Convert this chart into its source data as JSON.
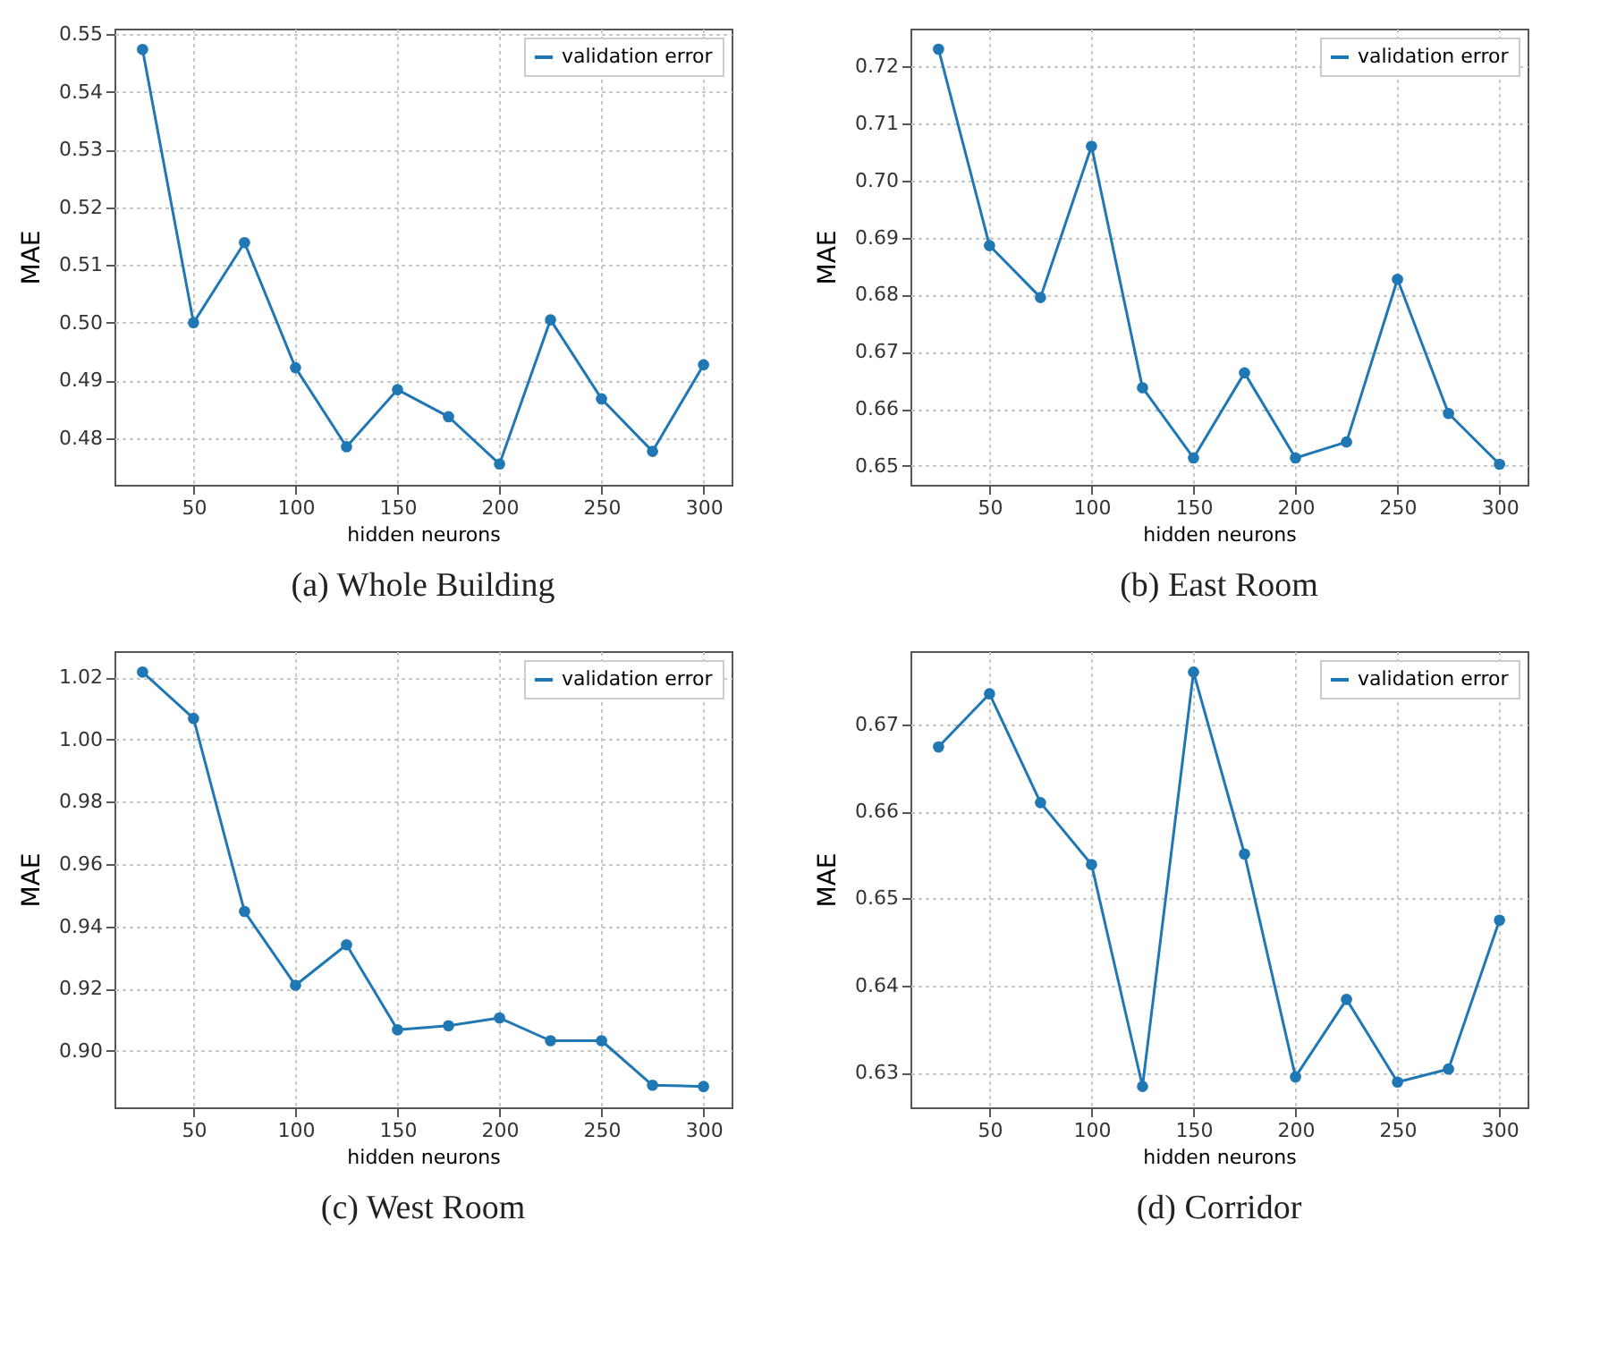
{
  "chart_data": [
    {
      "type": "line",
      "title": "(a) Whole Building",
      "xlabel": "hidden neurons",
      "ylabel": "MAE",
      "x": [
        25,
        50,
        75,
        100,
        125,
        150,
        175,
        200,
        225,
        250,
        275,
        300
      ],
      "series": [
        {
          "name": "validation error",
          "color": "#1f77b4",
          "values": [
            0.5474,
            0.5,
            0.5139,
            0.4922,
            0.4785,
            0.4884,
            0.4837,
            0.4755,
            0.5005,
            0.4868,
            0.4777,
            0.4927
          ]
        }
      ],
      "xlim": [
        11.25,
        313.75
      ],
      "ylim": [
        0.4719,
        0.551
      ],
      "xticks": [
        50,
        100,
        150,
        200,
        250,
        300
      ],
      "yticks": [
        0.48,
        0.49,
        {
          "value": 0.5,
          "label": "0.50"
        },
        0.51,
        0.52,
        0.53,
        0.54,
        0.55
      ],
      "grid": true,
      "legend": "top right",
      "marker": "circle"
    },
    {
      "type": "line",
      "title": "(b) East Room",
      "xlabel": "hidden neurons",
      "ylabel": "MAE",
      "x": [
        25,
        50,
        75,
        100,
        125,
        150,
        175,
        200,
        225,
        250,
        275,
        300
      ],
      "series": [
        {
          "name": "validation error",
          "color": "#1f77b4",
          "values": [
            0.723,
            0.6886,
            0.6795,
            0.706,
            0.6637,
            0.6514,
            0.6663,
            0.6514,
            0.6542,
            0.6827,
            0.6592,
            0.6503
          ]
        }
      ],
      "xlim": [
        11.25,
        313.75
      ],
      "ylim": [
        0.6467,
        0.7266
      ],
      "xticks": [
        50,
        100,
        150,
        200,
        250,
        300
      ],
      "yticks": [
        0.65,
        0.66,
        0.67,
        0.68,
        0.69,
        {
          "value": 0.7,
          "label": "0.70"
        },
        0.71,
        0.72
      ],
      "grid": true,
      "legend": "top right",
      "marker": "circle"
    },
    {
      "type": "line",
      "title": "(c) West Room",
      "xlabel": "hidden neurons",
      "ylabel": "MAE",
      "x": [
        25,
        50,
        75,
        100,
        125,
        150,
        175,
        200,
        225,
        250,
        275,
        300
      ],
      "series": [
        {
          "name": "validation error",
          "color": "#1f77b4",
          "values": [
            1.0217,
            1.0068,
            0.9448,
            0.9211,
            0.9341,
            0.9068,
            0.9081,
            0.9106,
            0.9033,
            0.9033,
            0.889,
            0.8886
          ]
        }
      ],
      "xlim": [
        11.25,
        313.75
      ],
      "ylim": [
        0.8819,
        1.0284
      ],
      "xticks": [
        50,
        100,
        150,
        200,
        250,
        300
      ],
      "yticks": [
        {
          "value": 0.9,
          "label": "0.90"
        },
        0.92,
        0.94,
        0.96,
        0.98,
        {
          "value": 1,
          "label": "1.00"
        },
        1.02
      ],
      "grid": true,
      "legend": "top right",
      "marker": "circle"
    },
    {
      "type": "line",
      "title": "(d) Corridor",
      "xlabel": "hidden neurons",
      "ylabel": "MAE",
      "x": [
        25,
        50,
        75,
        100,
        125,
        150,
        175,
        200,
        225,
        250,
        275,
        300
      ],
      "series": [
        {
          "name": "validation error",
          "color": "#1f77b4",
          "values": [
            0.6674,
            0.6735,
            0.661,
            0.6539,
            0.6284,
            0.676,
            0.6551,
            0.6295,
            0.6384,
            0.6289,
            0.6304,
            0.6475
          ]
        }
      ],
      "xlim": [
        11.25,
        313.75
      ],
      "ylim": [
        0.626,
        0.6784
      ],
      "xticks": [
        50,
        100,
        150,
        200,
        250,
        300
      ],
      "yticks": [
        0.63,
        0.64,
        0.65,
        0.66,
        0.67
      ],
      "grid": true,
      "legend": "top right",
      "marker": "circle"
    }
  ]
}
